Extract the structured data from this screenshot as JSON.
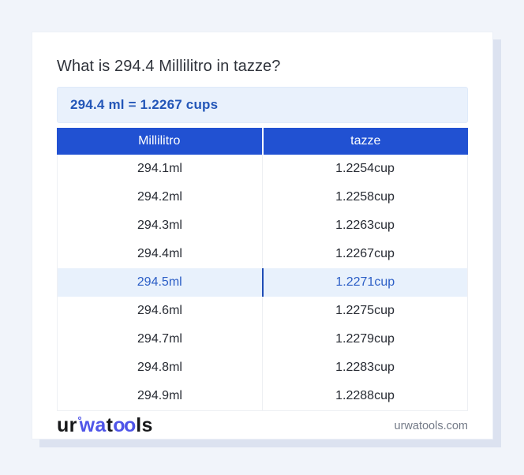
{
  "page_title": "What is 294.4 Millilitro in tazze?",
  "result": {
    "text": "294.4 ml = 1.2267 cups"
  },
  "table": {
    "headers": [
      "Millilitro",
      "tazze"
    ],
    "highlight_index": 4,
    "rows": [
      {
        "ml": "294.1ml",
        "cup": "1.2254cup"
      },
      {
        "ml": "294.2ml",
        "cup": "1.2258cup"
      },
      {
        "ml": "294.3ml",
        "cup": "1.2263cup"
      },
      {
        "ml": "294.4ml",
        "cup": "1.2267cup"
      },
      {
        "ml": "294.5ml",
        "cup": "1.2271cup"
      },
      {
        "ml": "294.6ml",
        "cup": "1.2275cup"
      },
      {
        "ml": "294.7ml",
        "cup": "1.2279cup"
      },
      {
        "ml": "294.8ml",
        "cup": "1.2283cup"
      },
      {
        "ml": "294.9ml",
        "cup": "1.2288cup"
      }
    ]
  },
  "footer": {
    "logo": {
      "part_ur": "ur",
      "icon": "degree-ring",
      "part_wa": "wa",
      "part_t": "t",
      "part_oo": "oo",
      "part_ls": "ls"
    },
    "domain": "urwatools.com"
  },
  "colors": {
    "page-bg": "#f1f4fa",
    "card-bg": "#ffffff",
    "card-shadow": "#dce2f0",
    "header-bg": "#2151d2",
    "header-text": "#ffffff",
    "result-bg": "#e9f1fc",
    "result-text": "#2356b8",
    "highlight-bg": "#e8f1fc",
    "highlight-text": "#2b5ec6",
    "highlight-divider": "#1e4cb5",
    "logo-blue": "#4f55e8",
    "domain-text": "#747b88"
  }
}
